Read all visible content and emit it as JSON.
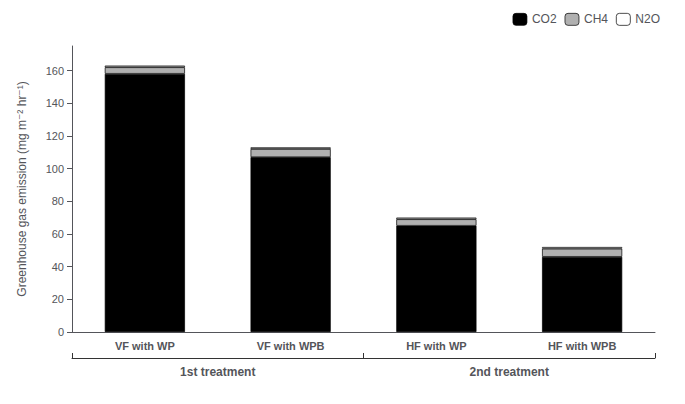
{
  "chart_data": {
    "type": "bar",
    "stacked": true,
    "categories": [
      "VF with WP",
      "VF with WPB",
      "HF with WP",
      "HF with WPB"
    ],
    "series": [
      {
        "name": "CO2",
        "color": "#000000",
        "values": [
          158,
          107,
          65,
          46
        ]
      },
      {
        "name": "CH4",
        "color": "#b0b0b0",
        "values": [
          4,
          5,
          4,
          5
        ]
      },
      {
        "name": "N2O",
        "color": "#ffffff",
        "values": [
          1,
          1,
          1,
          1
        ]
      }
    ],
    "ylabel": "Greenhouse gas emission (mg m⁻² hr⁻¹)",
    "ylim": [
      0,
      175
    ],
    "yticks": [
      0,
      20,
      40,
      60,
      80,
      100,
      120,
      140,
      160
    ],
    "grid": false,
    "legend": "upper right",
    "annotations": [
      {
        "text": "1st treatment",
        "categories": [
          "VF with WP",
          "VF with WPB"
        ]
      },
      {
        "text": "2nd treatment",
        "categories": [
          "HF with WP",
          "HF with WPB"
        ]
      }
    ]
  }
}
